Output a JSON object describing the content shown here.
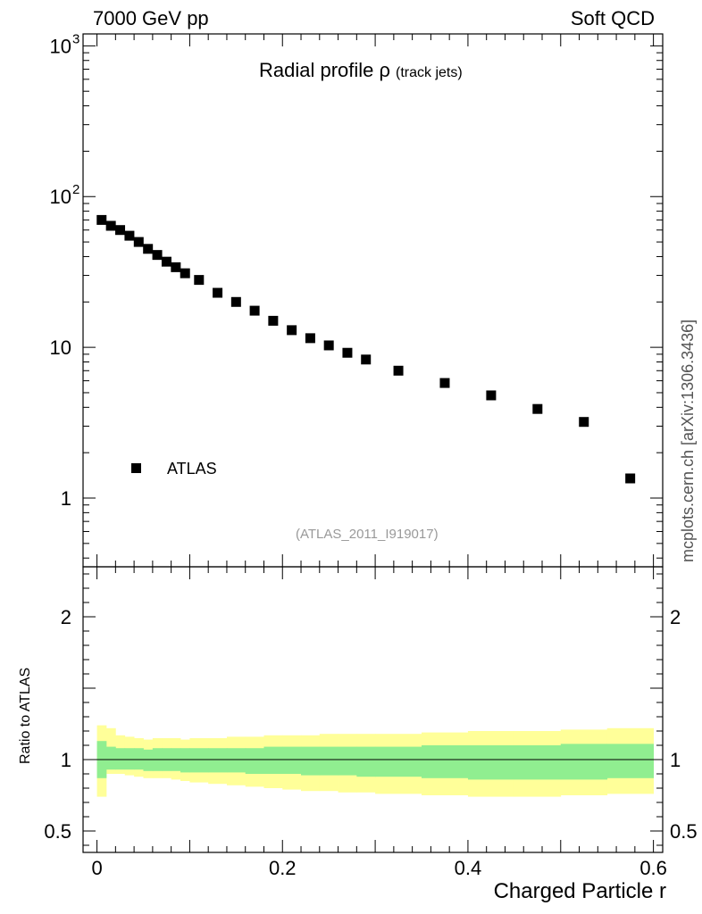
{
  "header": {
    "left": "7000 GeV pp",
    "right": "Soft QCD",
    "side_label": "mcplots.cern.ch [arXiv:1306.3436]"
  },
  "chart_data": {
    "type": "scatter",
    "title": "Radial profile ρ",
    "subtitle": "(track jets)",
    "reference": "(ATLAS_2011_I919017)",
    "xlabel": "Charged Particle r",
    "xlim": [
      -0.015,
      0.61
    ],
    "xticks": [
      {
        "value": 0,
        "label": "0"
      },
      {
        "value": 0.2,
        "label": "0.2"
      },
      {
        "value": 0.4,
        "label": "0.4"
      },
      {
        "value": 0.6,
        "label": "0.6"
      }
    ],
    "main": {
      "yscale": "log",
      "ylim": [
        0.35,
        1200
      ],
      "yticks": [
        {
          "value": 1,
          "label": "1",
          "sup": ""
        },
        {
          "value": 10,
          "label": "10",
          "sup": ""
        },
        {
          "value": 100,
          "label": "10",
          "sup": "2"
        },
        {
          "value": 1000,
          "label": "10",
          "sup": "3"
        }
      ],
      "series": [
        {
          "name": "ATLAS",
          "marker": "square",
          "x": [
            0.005,
            0.015,
            0.025,
            0.035,
            0.045,
            0.055,
            0.065,
            0.075,
            0.085,
            0.095,
            0.11,
            0.13,
            0.15,
            0.17,
            0.19,
            0.21,
            0.23,
            0.25,
            0.27,
            0.29,
            0.325,
            0.375,
            0.425,
            0.475,
            0.525,
            0.575
          ],
          "y": [
            70,
            64,
            60,
            55,
            50,
            45,
            41,
            37,
            34,
            31,
            28,
            23,
            20,
            17.5,
            15,
            13,
            11.5,
            10.3,
            9.2,
            8.3,
            7.0,
            5.8,
            4.8,
            3.9,
            3.2,
            1.35
          ]
        }
      ],
      "legend": {
        "position": "bottom-left",
        "label": "ATLAS"
      }
    },
    "ratio": {
      "ylabel": "Ratio to ATLAS",
      "ylim": [
        0.35,
        2.35
      ],
      "yticks": [
        {
          "value": 0.5,
          "label": "0.5"
        },
        {
          "value": 1,
          "label": "1"
        },
        {
          "value": 2,
          "label": "2"
        }
      ],
      "reference_line": 1,
      "bins": [
        0,
        0.01,
        0.02,
        0.03,
        0.04,
        0.05,
        0.06,
        0.07,
        0.08,
        0.09,
        0.1,
        0.12,
        0.14,
        0.16,
        0.18,
        0.2,
        0.22,
        0.24,
        0.26,
        0.28,
        0.3,
        0.35,
        0.4,
        0.45,
        0.5,
        0.55,
        0.6
      ],
      "stat_band": {
        "color": "#90ee90",
        "lower": [
          0.87,
          0.93,
          0.93,
          0.93,
          0.93,
          0.92,
          0.92,
          0.92,
          0.92,
          0.91,
          0.91,
          0.91,
          0.91,
          0.9,
          0.9,
          0.9,
          0.89,
          0.89,
          0.89,
          0.88,
          0.88,
          0.87,
          0.86,
          0.86,
          0.86,
          0.87
        ],
        "upper": [
          1.13,
          1.09,
          1.08,
          1.08,
          1.08,
          1.07,
          1.08,
          1.08,
          1.08,
          1.08,
          1.08,
          1.08,
          1.08,
          1.08,
          1.09,
          1.09,
          1.09,
          1.09,
          1.09,
          1.09,
          1.09,
          1.1,
          1.1,
          1.1,
          1.11,
          1.11
        ]
      },
      "syst_band": {
        "color": "#ffff99",
        "lower": [
          0.74,
          0.9,
          0.9,
          0.89,
          0.88,
          0.87,
          0.87,
          0.87,
          0.86,
          0.85,
          0.84,
          0.83,
          0.82,
          0.81,
          0.8,
          0.79,
          0.78,
          0.78,
          0.77,
          0.77,
          0.76,
          0.75,
          0.74,
          0.74,
          0.75,
          0.76
        ],
        "upper": [
          1.24,
          1.22,
          1.17,
          1.16,
          1.15,
          1.14,
          1.15,
          1.15,
          1.15,
          1.14,
          1.15,
          1.15,
          1.16,
          1.16,
          1.17,
          1.17,
          1.17,
          1.18,
          1.18,
          1.18,
          1.18,
          1.19,
          1.2,
          1.2,
          1.21,
          1.22
        ]
      }
    }
  }
}
